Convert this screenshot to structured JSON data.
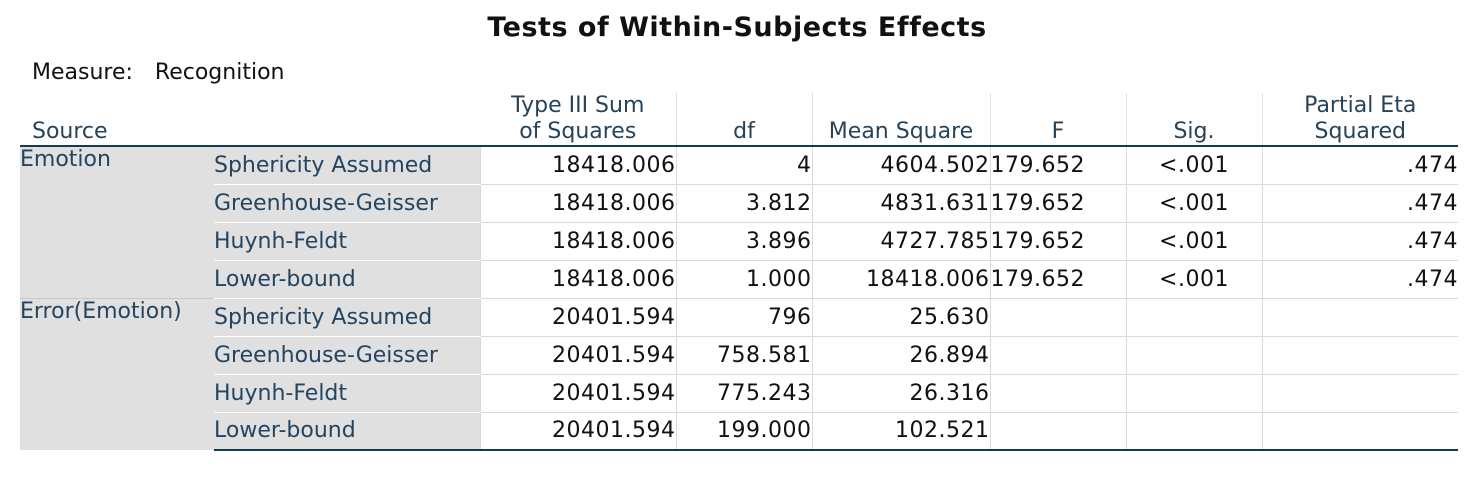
{
  "title": "Tests of Within-Subjects Effects",
  "measure": {
    "label": "Measure:",
    "value": "Recognition"
  },
  "headers": {
    "source": "Source",
    "ss_line1": "Type III Sum",
    "ss_line2": "of Squares",
    "df": "df",
    "ms": "Mean Square",
    "f": "F",
    "sig": "Sig.",
    "eta_line1": "Partial Eta",
    "eta_line2": "Squared"
  },
  "groups": [
    {
      "source": "Emotion",
      "rows": [
        {
          "correction": "Sphericity Assumed",
          "ss": "18418.006",
          "df": "4",
          "ms": "4604.502",
          "f": "179.652",
          "sig": "<.001",
          "eta": ".474"
        },
        {
          "correction": "Greenhouse-Geisser",
          "ss": "18418.006",
          "df": "3.812",
          "ms": "4831.631",
          "f": "179.652",
          "sig": "<.001",
          "eta": ".474"
        },
        {
          "correction": "Huynh-Feldt",
          "ss": "18418.006",
          "df": "3.896",
          "ms": "4727.785",
          "f": "179.652",
          "sig": "<.001",
          "eta": ".474"
        },
        {
          "correction": "Lower-bound",
          "ss": "18418.006",
          "df": "1.000",
          "ms": "18418.006",
          "f": "179.652",
          "sig": "<.001",
          "eta": ".474"
        }
      ]
    },
    {
      "source": "Error(Emotion)",
      "rows": [
        {
          "correction": "Sphericity Assumed",
          "ss": "20401.594",
          "df": "796",
          "ms": "25.630",
          "f": "",
          "sig": "",
          "eta": ""
        },
        {
          "correction": "Greenhouse-Geisser",
          "ss": "20401.594",
          "df": "758.581",
          "ms": "26.894",
          "f": "",
          "sig": "",
          "eta": ""
        },
        {
          "correction": "Huynh-Feldt",
          "ss": "20401.594",
          "df": "775.243",
          "ms": "26.316",
          "f": "",
          "sig": "",
          "eta": ""
        },
        {
          "correction": "Lower-bound",
          "ss": "20401.594",
          "df": "199.000",
          "ms": "102.521",
          "f": "",
          "sig": "",
          "eta": ""
        }
      ]
    }
  ]
}
